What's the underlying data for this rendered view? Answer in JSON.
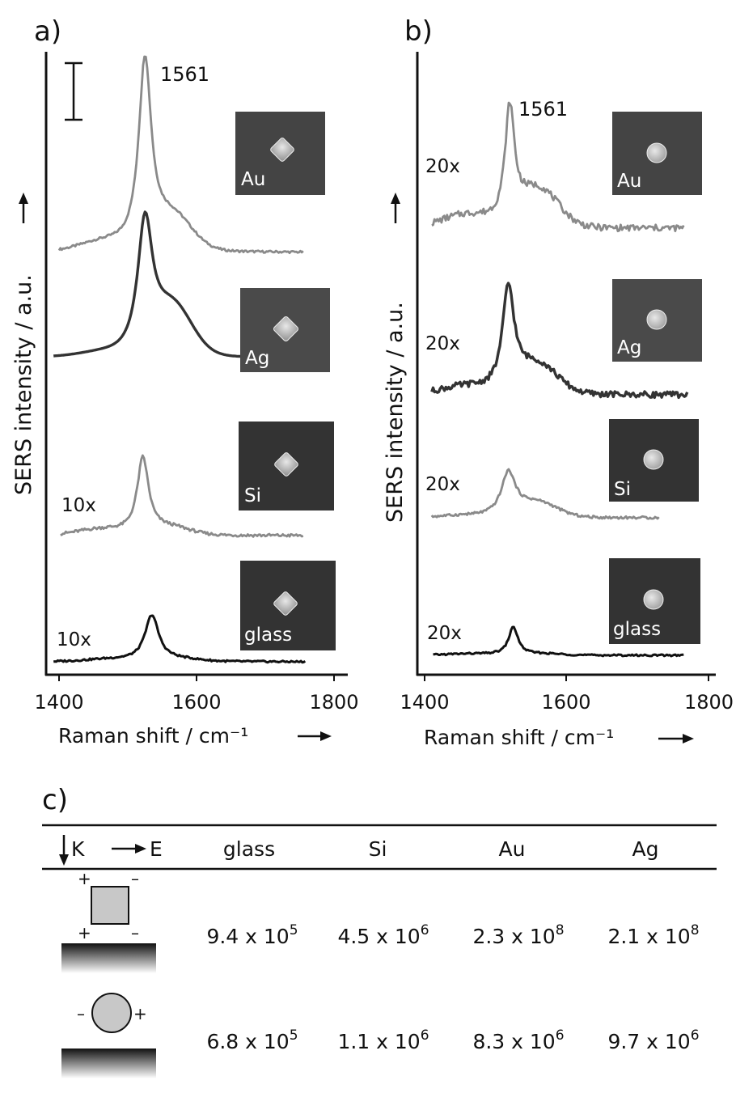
{
  "figure": {
    "panel_a_label": "a)",
    "panel_b_label": "b)",
    "panel_c_label": "c)"
  },
  "chart_data": [
    {
      "panel": "a)",
      "type": "line",
      "xlabel": "Raman shift / cm⁻¹",
      "ylabel": "SERS intensity / a.u.",
      "xlim": [
        1390,
        1810
      ],
      "xticks": [
        "1400",
        "1600",
        "1800"
      ],
      "peak_label": "1561",
      "grid": false,
      "series": [
        {
          "substrate": "Au",
          "multiplier": "",
          "color": "#8a8a8a",
          "x0": 1400,
          "x1": 1755,
          "peak": 1525,
          "amp": 1.0,
          "width": 11,
          "base": 0.05,
          "shoulder": 0.18,
          "noise": 0.006
        },
        {
          "substrate": "Ag",
          "multiplier": "",
          "color": "#333333",
          "x0": 1392,
          "x1": 1755,
          "peak": 1525,
          "amp": 1.0,
          "width": 13,
          "base": 0.03,
          "shoulder": 0.38,
          "noise": 0.0
        },
        {
          "substrate": "Si",
          "multiplier": "10x",
          "color": "#8a8a8a",
          "x0": 1402,
          "x1": 1755,
          "peak": 1522,
          "amp": 1.0,
          "width": 10,
          "base": 0.08,
          "shoulder": 0.1,
          "noise": 0.02
        },
        {
          "substrate": "glass",
          "multiplier": "10x",
          "color": "#111111",
          "x0": 1392,
          "x1": 1758,
          "peak": 1535,
          "amp": 1.0,
          "width": 12,
          "base": 0.05,
          "shoulder": 0.05,
          "noise": 0.02
        }
      ]
    },
    {
      "panel": "b)",
      "type": "line",
      "xlabel": "Raman shift / cm⁻¹",
      "ylabel": "SERS intensity / a.u.",
      "xlim": [
        1390,
        1810
      ],
      "xticks": [
        "1400",
        "1600",
        "1800"
      ],
      "peak_label": "1561",
      "grid": false,
      "series": [
        {
          "substrate": "Au",
          "multiplier": "20x",
          "color": "#8a8a8a",
          "x0": 1410,
          "x1": 1765,
          "peak": 1520,
          "amp": 1.0,
          "width": 8,
          "base": 0.12,
          "shoulder": 0.35,
          "noise": 0.03
        },
        {
          "substrate": "Ag",
          "multiplier": "20x",
          "color": "#333333",
          "x0": 1410,
          "x1": 1770,
          "peak": 1518,
          "amp": 1.0,
          "width": 10,
          "base": 0.08,
          "shoulder": 0.3,
          "noise": 0.03
        },
        {
          "substrate": "Si",
          "multiplier": "20x",
          "color": "#8a8a8a",
          "x0": 1410,
          "x1": 1730,
          "peak": 1518,
          "amp": 1.0,
          "width": 12,
          "base": 0.05,
          "shoulder": 0.35,
          "noise": 0.03
        },
        {
          "substrate": "glass",
          "multiplier": "20x",
          "color": "#111111",
          "x0": 1412,
          "x1": 1765,
          "peak": 1525,
          "amp": 1.0,
          "width": 8,
          "base": 0.05,
          "shoulder": 0.05,
          "noise": 0.03
        }
      ]
    }
  ],
  "table": {
    "header_k": "K",
    "header_e": "E",
    "columns": [
      "glass",
      "Si",
      "Au",
      "Ag"
    ],
    "rows": [
      {
        "particle": "square",
        "values": [
          {
            "mant": "9.4 x 10",
            "exp": "5"
          },
          {
            "mant": "4.5 x 10",
            "exp": "6"
          },
          {
            "mant": "2.3 x 10",
            "exp": "8"
          },
          {
            "mant": "2.1 x 10",
            "exp": "8"
          }
        ]
      },
      {
        "particle": "circle",
        "values": [
          {
            "mant": "6.8 x 10",
            "exp": "5"
          },
          {
            "mant": "1.1 x 10",
            "exp": "6"
          },
          {
            "mant": "8.3 x 10",
            "exp": "6"
          },
          {
            "mant": "9.7 x 10",
            "exp": "6"
          }
        ]
      }
    ],
    "plus": "+",
    "minus": "–"
  }
}
